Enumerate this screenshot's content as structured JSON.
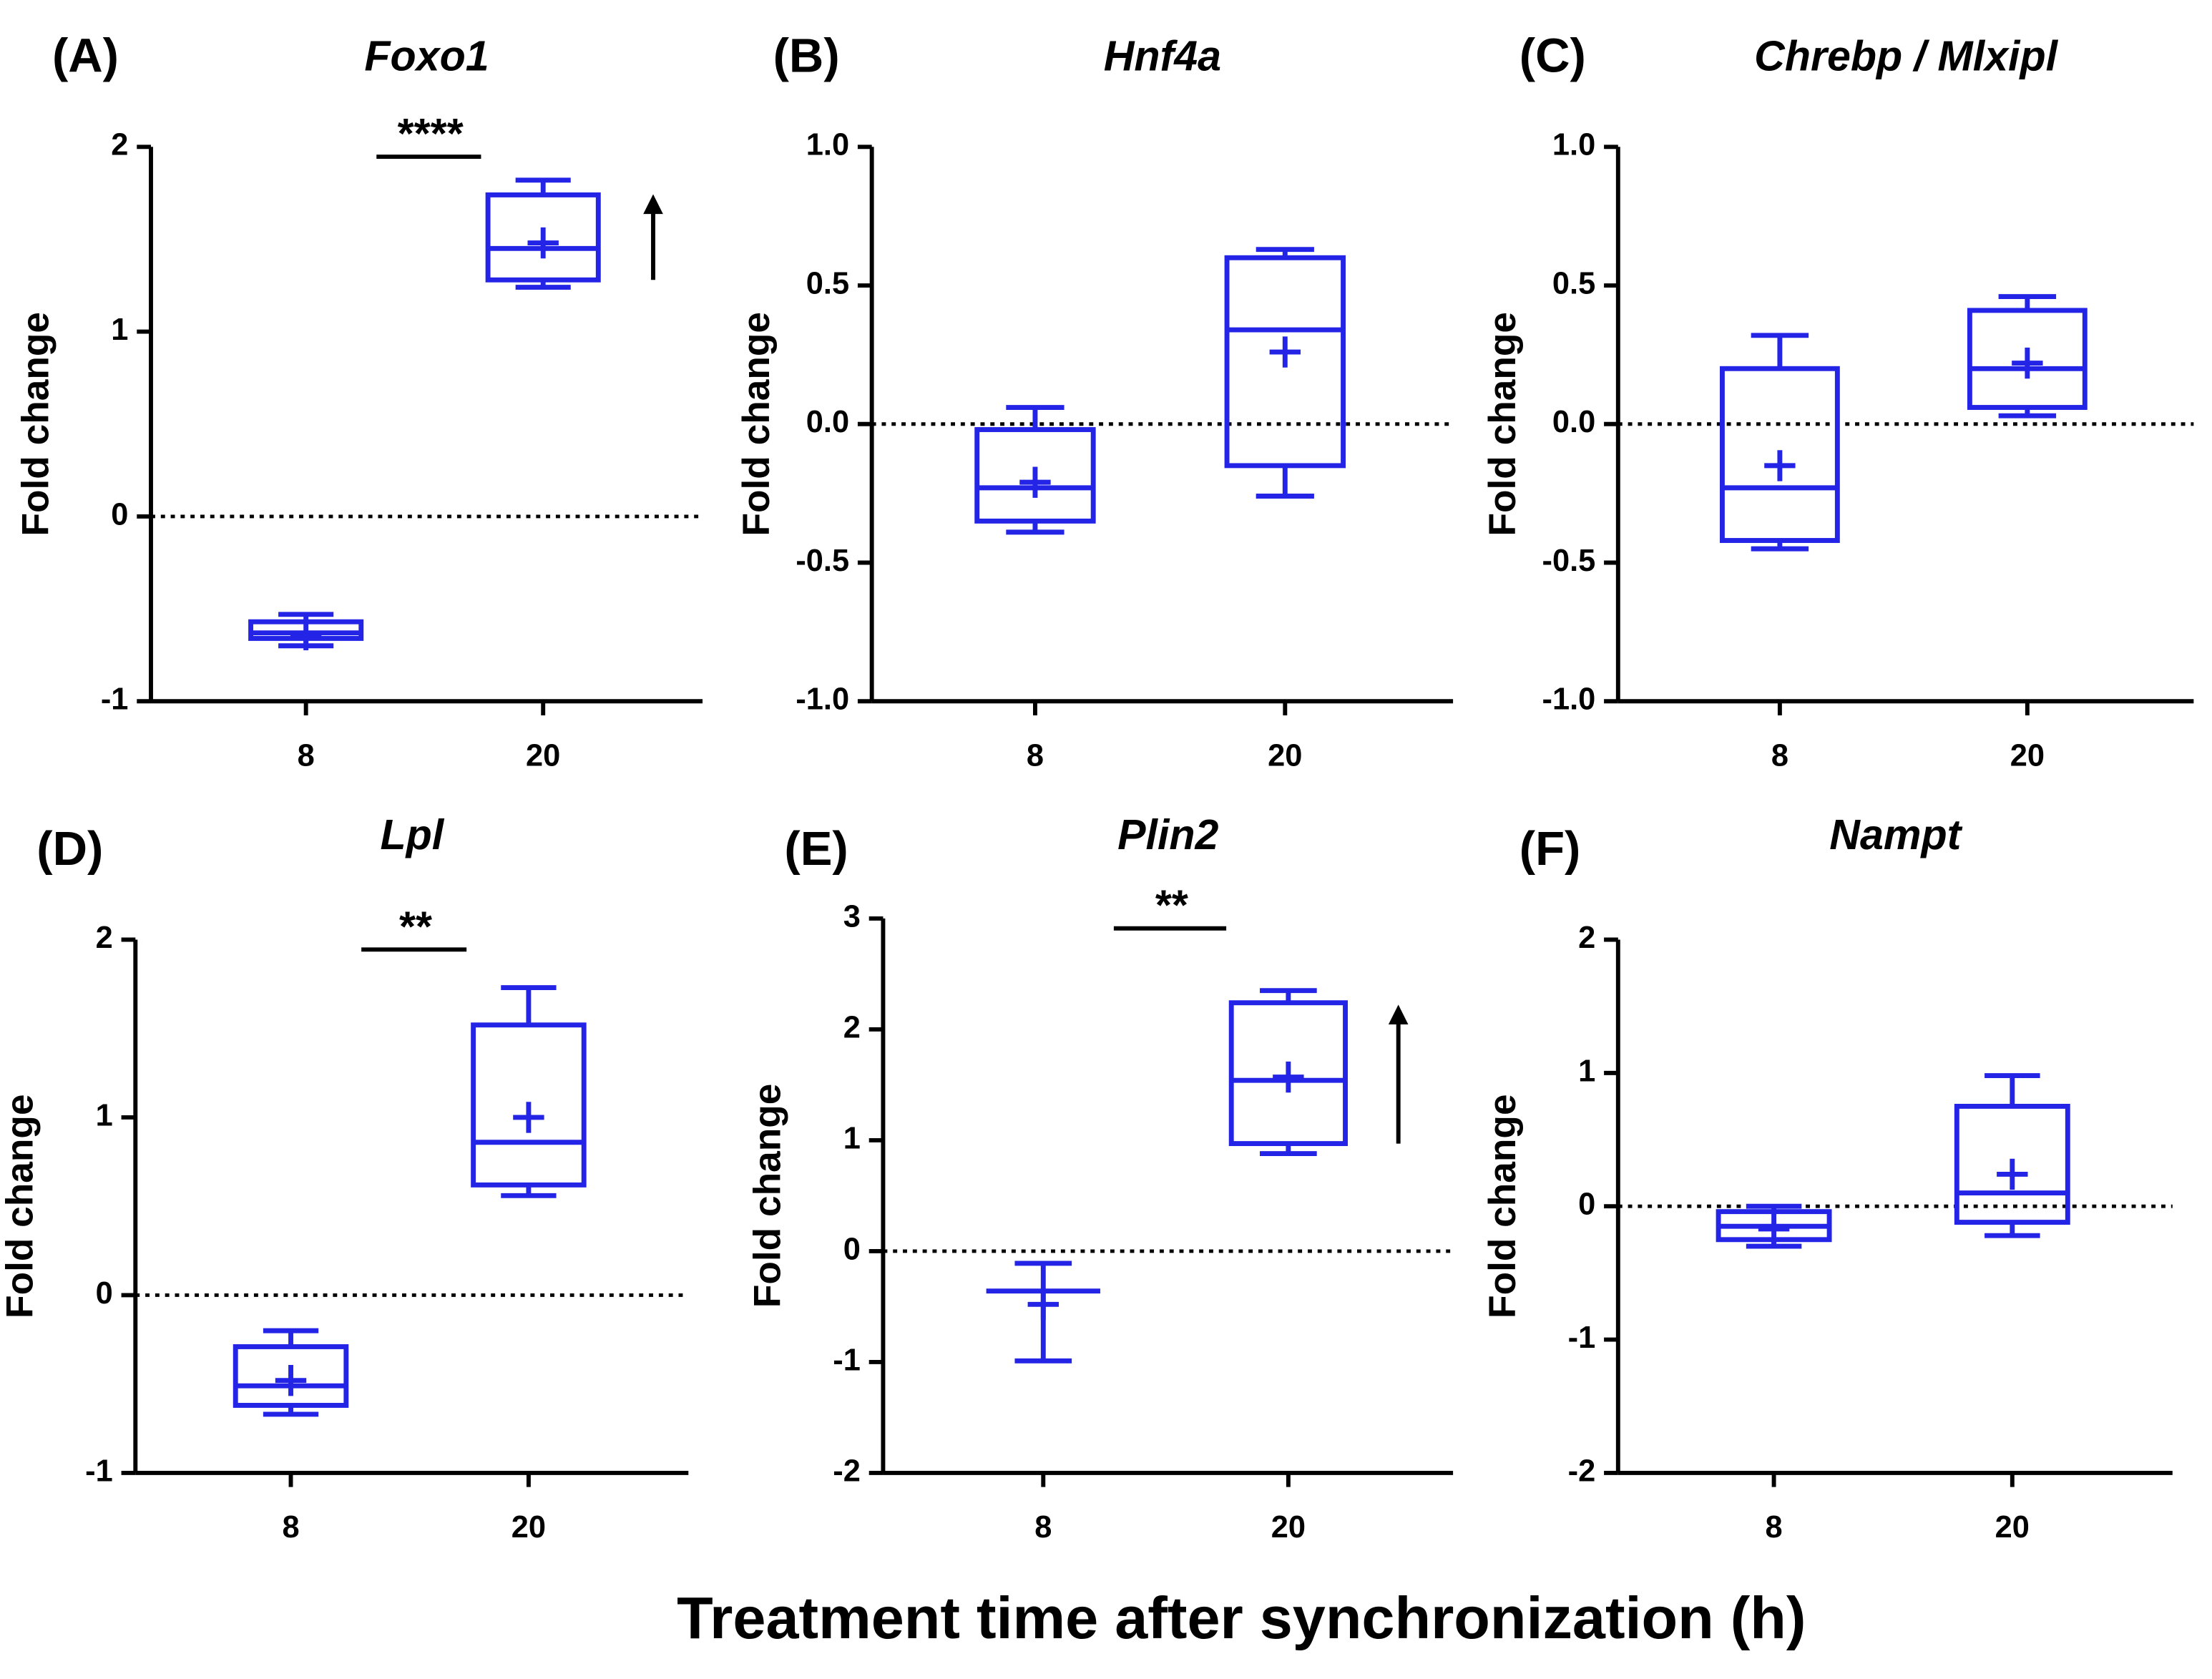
{
  "xlabel": "Treatment time after synchronization (h)",
  "chart_data": [
    {
      "type": "box",
      "panel": "(A)",
      "title": "Foxo1",
      "ylabel": "Fold change",
      "color": "#2424e6",
      "categories": [
        "8",
        "20"
      ],
      "ylim": [
        -1,
        2
      ],
      "yticks": [
        -1,
        0,
        1,
        2
      ],
      "hline": 0,
      "significance": "****",
      "arrow": "up",
      "boxes": [
        {
          "min": -0.7,
          "q1": -0.66,
          "median": -0.63,
          "q3": -0.57,
          "max": -0.53,
          "mean": -0.64
        },
        {
          "min": 1.24,
          "q1": 1.28,
          "median": 1.45,
          "q3": 1.74,
          "max": 1.82,
          "mean": 1.48
        }
      ]
    },
    {
      "type": "box",
      "panel": "(B)",
      "title": "Hnf4a",
      "ylabel": "Fold change",
      "color": "#2424e6",
      "categories": [
        "8",
        "20"
      ],
      "ylim": [
        -1,
        1
      ],
      "yticks": [
        {
          "value": -1,
          "label": "-1.0"
        },
        -0.5,
        {
          "value": 0,
          "label": "0.0"
        },
        0.5,
        {
          "value": 1,
          "label": "1.0"
        }
      ],
      "hline": 0,
      "boxes": [
        {
          "min": -0.39,
          "q1": -0.35,
          "median": -0.23,
          "q3": -0.02,
          "max": 0.06,
          "mean": -0.21
        },
        {
          "min": -0.26,
          "q1": -0.15,
          "median": 0.34,
          "q3": 0.6,
          "max": 0.63,
          "mean": 0.26
        }
      ]
    },
    {
      "type": "box",
      "panel": "(C)",
      "title": "Chrebp / Mlxipl",
      "ylabel": "Fold change",
      "color": "#2424e6",
      "categories": [
        "8",
        "20"
      ],
      "ylim": [
        -1,
        1
      ],
      "yticks": [
        {
          "value": -1,
          "label": "-1.0"
        },
        -0.5,
        {
          "value": 0,
          "label": "0.0"
        },
        0.5,
        {
          "value": 1,
          "label": "1.0"
        }
      ],
      "hline": 0,
      "boxes": [
        {
          "min": -0.45,
          "q1": -0.42,
          "median": -0.23,
          "q3": 0.2,
          "max": 0.32,
          "mean": -0.15
        },
        {
          "min": 0.03,
          "q1": 0.06,
          "median": 0.2,
          "q3": 0.41,
          "max": 0.46,
          "mean": 0.22
        }
      ]
    },
    {
      "type": "box",
      "panel": "(D)",
      "title": "Lpl",
      "ylabel": "Fold change",
      "color": "#2424e6",
      "categories": [
        "8",
        "20"
      ],
      "ylim": [
        -1,
        2
      ],
      "yticks": [
        -1,
        0,
        1,
        2
      ],
      "hline": 0,
      "significance": "**",
      "boxes": [
        {
          "min": -0.67,
          "q1": -0.62,
          "median": -0.51,
          "q3": -0.29,
          "max": -0.2,
          "mean": -0.48
        },
        {
          "min": 0.56,
          "q1": 0.62,
          "median": 0.86,
          "q3": 1.52,
          "max": 1.73,
          "mean": 1.0
        }
      ]
    },
    {
      "type": "box",
      "panel": "(E)",
      "title": "Plin2",
      "ylabel": "Fold change",
      "color": "#2424e6",
      "categories": [
        "8",
        "20"
      ],
      "ylim": [
        -2,
        3
      ],
      "yticks": [
        -2,
        -1,
        0,
        1,
        2,
        3
      ],
      "hline": 0,
      "significance": "**",
      "arrow": "up",
      "boxes": [
        {
          "min": -0.99,
          "q1": -0.36,
          "median": -0.36,
          "q3": -0.36,
          "max": -0.11,
          "mean": -0.48
        },
        {
          "min": 0.88,
          "q1": 0.97,
          "median": 1.54,
          "q3": 2.24,
          "max": 2.35,
          "mean": 1.57
        }
      ]
    },
    {
      "type": "box",
      "panel": "(F)",
      "title": "Nampt",
      "ylabel": "Fold change",
      "color": "#2424e6",
      "categories": [
        "8",
        "20"
      ],
      "ylim": [
        -2,
        2
      ],
      "yticks": [
        -2,
        -1,
        0,
        1,
        2
      ],
      "hline": 0,
      "boxes": [
        {
          "min": -0.3,
          "q1": -0.25,
          "median": -0.15,
          "q3": -0.04,
          "max": 0.0,
          "mean": -0.17
        },
        {
          "min": -0.22,
          "q1": -0.12,
          "median": 0.1,
          "q3": 0.75,
          "max": 0.98,
          "mean": 0.24
        }
      ]
    }
  ]
}
